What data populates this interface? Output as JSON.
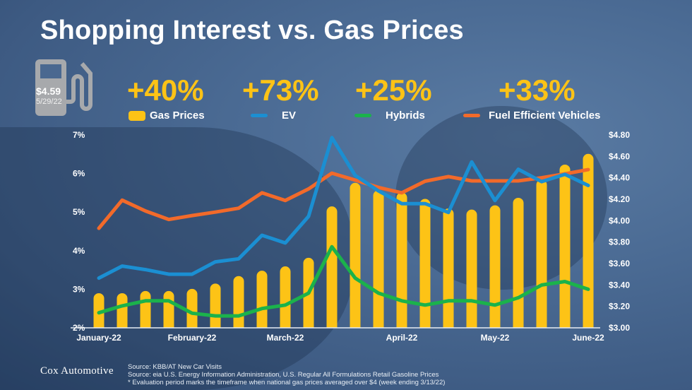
{
  "title": "Shopping Interest vs. Gas Prices",
  "pump": {
    "price": "$4.59",
    "date": "5/29/22"
  },
  "stats": [
    {
      "value": "+40%",
      "label": "Gas Prices",
      "color": "#fdc316"
    },
    {
      "value": "+73%",
      "label": "EV",
      "color": "#1b8fd2"
    },
    {
      "value": "+25%",
      "label": "Hybrids",
      "color": "#1bb24b"
    },
    {
      "value": "+33%",
      "label": "Fuel Efficient Vehicles",
      "color": "#f26a2a"
    }
  ],
  "chart_data": {
    "type": "bar+line",
    "title": "Shopping Interest vs. Gas Prices",
    "x_tick_labels": [
      {
        "index": 0,
        "label": "January-22"
      },
      {
        "index": 4,
        "label": "February-22"
      },
      {
        "index": 8,
        "label": "March-22"
      },
      {
        "index": 13,
        "label": "April-22"
      },
      {
        "index": 17,
        "label": "May-22"
      },
      {
        "index": 21,
        "label": "June-22"
      }
    ],
    "y_left": {
      "range": [
        2,
        7
      ],
      "ticks": [
        "2%",
        "3%",
        "4%",
        "5%",
        "6%",
        "7%"
      ]
    },
    "y_right": {
      "range": [
        3.0,
        4.8
      ],
      "ticks": [
        "$3.00",
        "$3.20",
        "$3.40",
        "$3.60",
        "$3.80",
        "$4.00",
        "$4.20",
        "$4.40",
        "$4.60",
        "$4.80"
      ]
    },
    "bars": {
      "name": "Gas Prices",
      "axis": "right",
      "color": "#fdc316",
      "values": [
        3.32,
        3.32,
        3.34,
        3.34,
        3.36,
        3.41,
        3.48,
        3.53,
        3.57,
        3.65,
        4.13,
        4.35,
        4.28,
        4.26,
        4.2,
        4.11,
        4.1,
        4.14,
        4.21,
        4.38,
        4.52,
        4.62
      ]
    },
    "series": [
      {
        "name": "Fuel Efficient Vehicles",
        "axis": "left",
        "color": "#f26a2a",
        "values": [
          4.58,
          5.31,
          5.03,
          4.81,
          4.91,
          5.0,
          5.1,
          5.5,
          5.3,
          5.6,
          6.01,
          5.83,
          5.64,
          5.5,
          5.8,
          5.92,
          5.81,
          5.81,
          5.81,
          5.89,
          5.99,
          6.1
        ]
      },
      {
        "name": "EV",
        "axis": "left",
        "color": "#1b8fd2",
        "values": [
          3.29,
          3.6,
          3.51,
          3.39,
          3.39,
          3.71,
          3.79,
          4.4,
          4.2,
          4.89,
          6.93,
          5.95,
          5.55,
          5.22,
          5.22,
          4.99,
          6.3,
          5.3,
          6.11,
          5.79,
          5.98,
          5.69
        ]
      },
      {
        "name": "Hybrids",
        "axis": "left",
        "color": "#1bb24b",
        "values": [
          2.39,
          2.57,
          2.7,
          2.7,
          2.38,
          2.31,
          2.31,
          2.5,
          2.59,
          2.9,
          4.1,
          3.29,
          2.9,
          2.7,
          2.59,
          2.7,
          2.7,
          2.59,
          2.78,
          3.11,
          3.2,
          3.0
        ]
      }
    ]
  },
  "footer": {
    "logo": "Cox Automotive",
    "sources": [
      "Source:  KBB/AT New Car Visits",
      "Source:  eia U.S. Energy Information Administration, U.S. Regular All Formulations Retail Gasoline Prices",
      "* Evaluation period marks the timeframe when national gas prices averaged over $4 (week ending 3/13/22)"
    ]
  }
}
